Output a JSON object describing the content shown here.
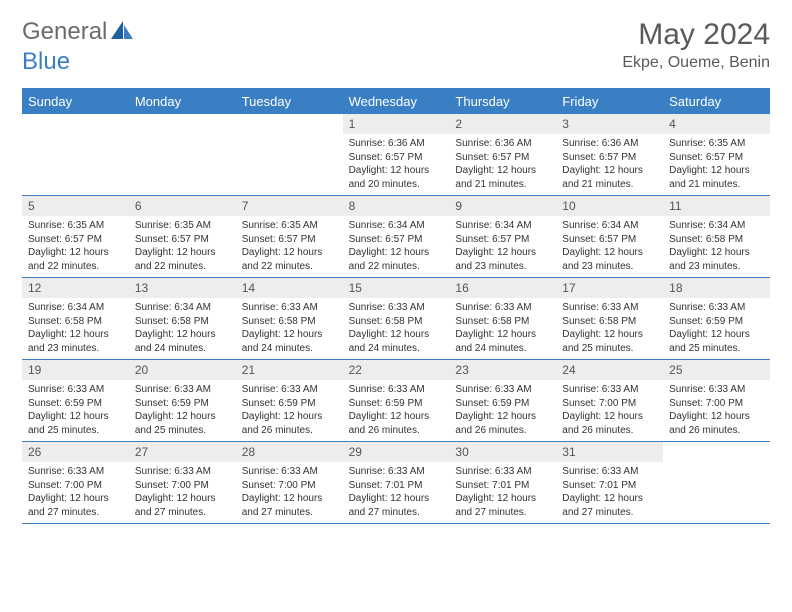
{
  "brand": {
    "general": "General",
    "blue": "Blue"
  },
  "title": "May 2024",
  "location": "Ekpe, Oueme, Benin",
  "colors": {
    "accent": "#3a7fc4",
    "header_text": "#ffffff",
    "daynum_bg": "#ededed",
    "text": "#333333",
    "title_text": "#5a5a5a"
  },
  "fonts": {
    "title_size": 30,
    "location_size": 16,
    "header_size": 13,
    "daynum_size": 12,
    "info_size": 10
  },
  "day_names": [
    "Sunday",
    "Monday",
    "Tuesday",
    "Wednesday",
    "Thursday",
    "Friday",
    "Saturday"
  ],
  "weeks": [
    [
      {
        "n": "",
        "empty": true
      },
      {
        "n": "",
        "empty": true
      },
      {
        "n": "",
        "empty": true
      },
      {
        "n": "1",
        "sunrise": "Sunrise: 6:36 AM",
        "sunset": "Sunset: 6:57 PM",
        "day1": "Daylight: 12 hours",
        "day2": "and 20 minutes."
      },
      {
        "n": "2",
        "sunrise": "Sunrise: 6:36 AM",
        "sunset": "Sunset: 6:57 PM",
        "day1": "Daylight: 12 hours",
        "day2": "and 21 minutes."
      },
      {
        "n": "3",
        "sunrise": "Sunrise: 6:36 AM",
        "sunset": "Sunset: 6:57 PM",
        "day1": "Daylight: 12 hours",
        "day2": "and 21 minutes."
      },
      {
        "n": "4",
        "sunrise": "Sunrise: 6:35 AM",
        "sunset": "Sunset: 6:57 PM",
        "day1": "Daylight: 12 hours",
        "day2": "and 21 minutes."
      }
    ],
    [
      {
        "n": "5",
        "sunrise": "Sunrise: 6:35 AM",
        "sunset": "Sunset: 6:57 PM",
        "day1": "Daylight: 12 hours",
        "day2": "and 22 minutes."
      },
      {
        "n": "6",
        "sunrise": "Sunrise: 6:35 AM",
        "sunset": "Sunset: 6:57 PM",
        "day1": "Daylight: 12 hours",
        "day2": "and 22 minutes."
      },
      {
        "n": "7",
        "sunrise": "Sunrise: 6:35 AM",
        "sunset": "Sunset: 6:57 PM",
        "day1": "Daylight: 12 hours",
        "day2": "and 22 minutes."
      },
      {
        "n": "8",
        "sunrise": "Sunrise: 6:34 AM",
        "sunset": "Sunset: 6:57 PM",
        "day1": "Daylight: 12 hours",
        "day2": "and 22 minutes."
      },
      {
        "n": "9",
        "sunrise": "Sunrise: 6:34 AM",
        "sunset": "Sunset: 6:57 PM",
        "day1": "Daylight: 12 hours",
        "day2": "and 23 minutes."
      },
      {
        "n": "10",
        "sunrise": "Sunrise: 6:34 AM",
        "sunset": "Sunset: 6:57 PM",
        "day1": "Daylight: 12 hours",
        "day2": "and 23 minutes."
      },
      {
        "n": "11",
        "sunrise": "Sunrise: 6:34 AM",
        "sunset": "Sunset: 6:58 PM",
        "day1": "Daylight: 12 hours",
        "day2": "and 23 minutes."
      }
    ],
    [
      {
        "n": "12",
        "sunrise": "Sunrise: 6:34 AM",
        "sunset": "Sunset: 6:58 PM",
        "day1": "Daylight: 12 hours",
        "day2": "and 23 minutes."
      },
      {
        "n": "13",
        "sunrise": "Sunrise: 6:34 AM",
        "sunset": "Sunset: 6:58 PM",
        "day1": "Daylight: 12 hours",
        "day2": "and 24 minutes."
      },
      {
        "n": "14",
        "sunrise": "Sunrise: 6:33 AM",
        "sunset": "Sunset: 6:58 PM",
        "day1": "Daylight: 12 hours",
        "day2": "and 24 minutes."
      },
      {
        "n": "15",
        "sunrise": "Sunrise: 6:33 AM",
        "sunset": "Sunset: 6:58 PM",
        "day1": "Daylight: 12 hours",
        "day2": "and 24 minutes."
      },
      {
        "n": "16",
        "sunrise": "Sunrise: 6:33 AM",
        "sunset": "Sunset: 6:58 PM",
        "day1": "Daylight: 12 hours",
        "day2": "and 24 minutes."
      },
      {
        "n": "17",
        "sunrise": "Sunrise: 6:33 AM",
        "sunset": "Sunset: 6:58 PM",
        "day1": "Daylight: 12 hours",
        "day2": "and 25 minutes."
      },
      {
        "n": "18",
        "sunrise": "Sunrise: 6:33 AM",
        "sunset": "Sunset: 6:59 PM",
        "day1": "Daylight: 12 hours",
        "day2": "and 25 minutes."
      }
    ],
    [
      {
        "n": "19",
        "sunrise": "Sunrise: 6:33 AM",
        "sunset": "Sunset: 6:59 PM",
        "day1": "Daylight: 12 hours",
        "day2": "and 25 minutes."
      },
      {
        "n": "20",
        "sunrise": "Sunrise: 6:33 AM",
        "sunset": "Sunset: 6:59 PM",
        "day1": "Daylight: 12 hours",
        "day2": "and 25 minutes."
      },
      {
        "n": "21",
        "sunrise": "Sunrise: 6:33 AM",
        "sunset": "Sunset: 6:59 PM",
        "day1": "Daylight: 12 hours",
        "day2": "and 26 minutes."
      },
      {
        "n": "22",
        "sunrise": "Sunrise: 6:33 AM",
        "sunset": "Sunset: 6:59 PM",
        "day1": "Daylight: 12 hours",
        "day2": "and 26 minutes."
      },
      {
        "n": "23",
        "sunrise": "Sunrise: 6:33 AM",
        "sunset": "Sunset: 6:59 PM",
        "day1": "Daylight: 12 hours",
        "day2": "and 26 minutes."
      },
      {
        "n": "24",
        "sunrise": "Sunrise: 6:33 AM",
        "sunset": "Sunset: 7:00 PM",
        "day1": "Daylight: 12 hours",
        "day2": "and 26 minutes."
      },
      {
        "n": "25",
        "sunrise": "Sunrise: 6:33 AM",
        "sunset": "Sunset: 7:00 PM",
        "day1": "Daylight: 12 hours",
        "day2": "and 26 minutes."
      }
    ],
    [
      {
        "n": "26",
        "sunrise": "Sunrise: 6:33 AM",
        "sunset": "Sunset: 7:00 PM",
        "day1": "Daylight: 12 hours",
        "day2": "and 27 minutes."
      },
      {
        "n": "27",
        "sunrise": "Sunrise: 6:33 AM",
        "sunset": "Sunset: 7:00 PM",
        "day1": "Daylight: 12 hours",
        "day2": "and 27 minutes."
      },
      {
        "n": "28",
        "sunrise": "Sunrise: 6:33 AM",
        "sunset": "Sunset: 7:00 PM",
        "day1": "Daylight: 12 hours",
        "day2": "and 27 minutes."
      },
      {
        "n": "29",
        "sunrise": "Sunrise: 6:33 AM",
        "sunset": "Sunset: 7:01 PM",
        "day1": "Daylight: 12 hours",
        "day2": "and 27 minutes."
      },
      {
        "n": "30",
        "sunrise": "Sunrise: 6:33 AM",
        "sunset": "Sunset: 7:01 PM",
        "day1": "Daylight: 12 hours",
        "day2": "and 27 minutes."
      },
      {
        "n": "31",
        "sunrise": "Sunrise: 6:33 AM",
        "sunset": "Sunset: 7:01 PM",
        "day1": "Daylight: 12 hours",
        "day2": "and 27 minutes."
      },
      {
        "n": "",
        "empty": true
      }
    ]
  ]
}
